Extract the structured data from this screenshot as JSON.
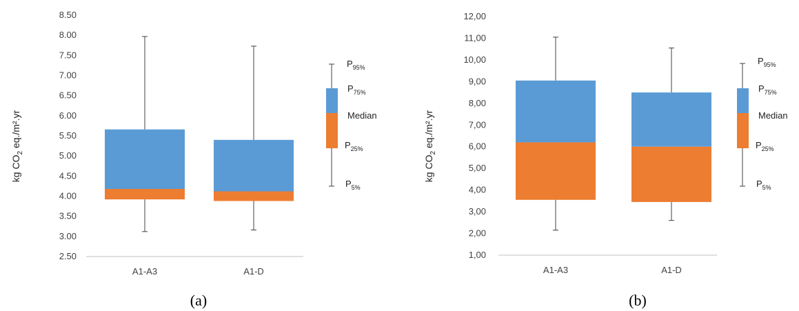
{
  "colors": {
    "lower_box": "#ED7D31",
    "upper_box": "#5B9BD5",
    "whisker": "#404040",
    "axis": "#BFBFBF"
  },
  "legend": {
    "p95_main": "P",
    "p95_sub": "95%",
    "p75_main": "P",
    "p75_sub": "75%",
    "median": "Median",
    "p25_main": "P",
    "p25_sub": "25%",
    "p5_main": "P",
    "p5_sub": "5%"
  },
  "chart_data": [
    {
      "type": "box",
      "caption": "(a)",
      "ylabel_main": "kg CO",
      "ylabel_sub": "2",
      "ylabel_rest": " eq./m².yr",
      "ylim": [
        2.5,
        8.5
      ],
      "yticks": [
        "2.50",
        "3.00",
        "3.50",
        "4.00",
        "4.50",
        "5.00",
        "5.50",
        "6.00",
        "6.50",
        "7.00",
        "7.50",
        "8.00",
        "8.50"
      ],
      "categories": [
        "A1-A3",
        "A1-D"
      ],
      "boxes": [
        {
          "category": "A1-A3",
          "p5": 3.12,
          "p25": 3.92,
          "median": 4.18,
          "p75": 5.66,
          "p95": 7.97
        },
        {
          "category": "A1-D",
          "p5": 3.16,
          "p25": 3.88,
          "median": 4.12,
          "p75": 5.4,
          "p95": 7.73
        }
      ]
    },
    {
      "type": "box",
      "caption": "(b)",
      "ylabel_main": "kg CO",
      "ylabel_sub": "2",
      "ylabel_rest": " eq./m².yr",
      "ylim": [
        1.0,
        12.0
      ],
      "yticks": [
        "1,00",
        "2,00",
        "3,00",
        "4,00",
        "5,00",
        "6,00",
        "7,00",
        "8,00",
        "9,00",
        "10,00",
        "11,00",
        "12,00"
      ],
      "categories": [
        "A1-A3",
        "A1-D"
      ],
      "boxes": [
        {
          "category": "A1-A3",
          "p5": 2.15,
          "p25": 3.55,
          "median": 6.2,
          "p75": 9.05,
          "p95": 11.05
        },
        {
          "category": "A1-D",
          "p5": 2.6,
          "p25": 3.45,
          "median": 6.0,
          "p75": 8.5,
          "p95": 10.55
        }
      ]
    }
  ]
}
